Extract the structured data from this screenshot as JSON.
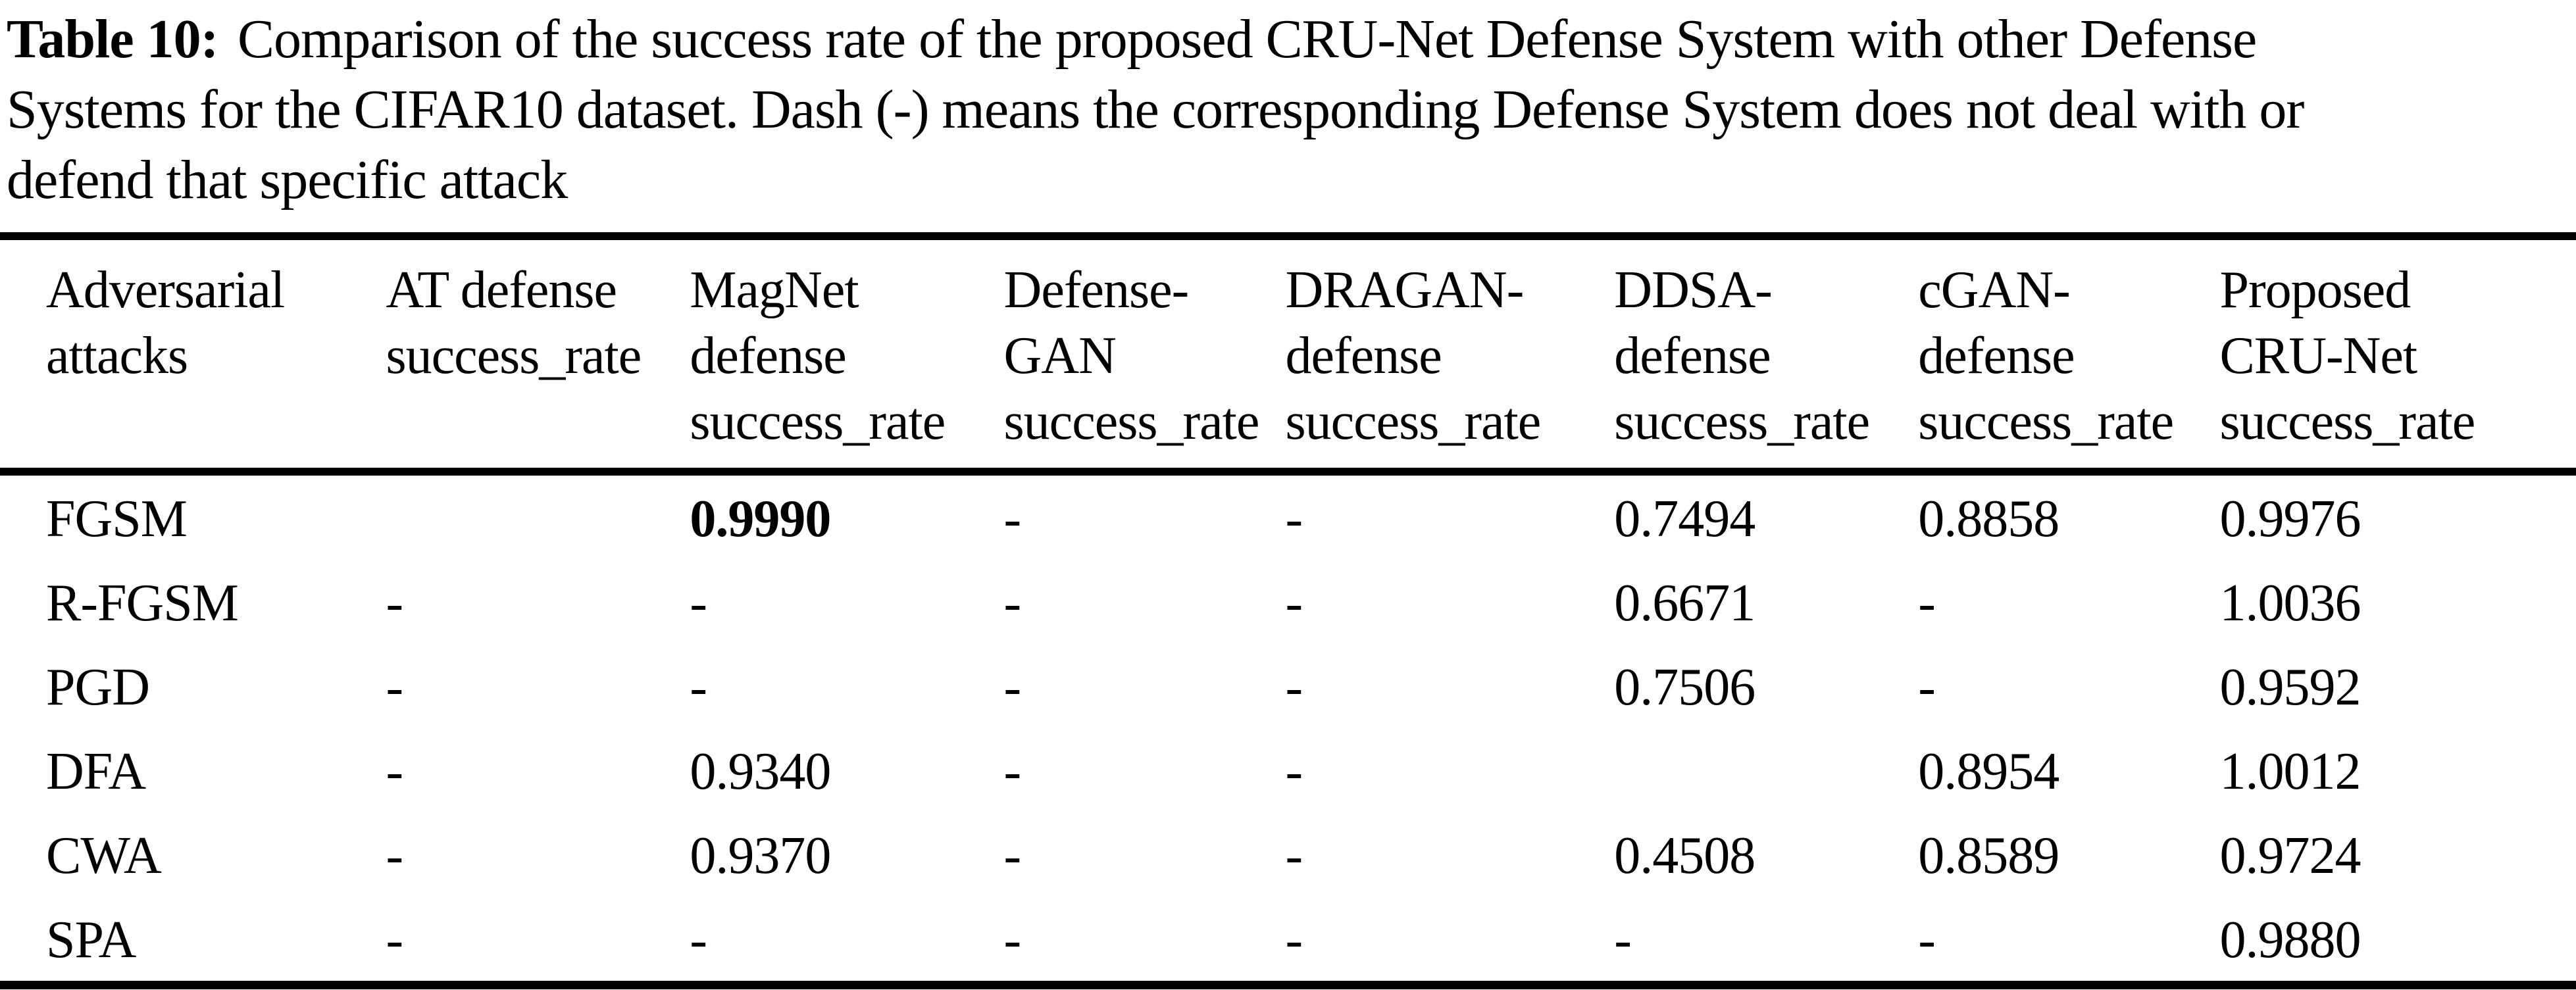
{
  "caption": {
    "label": "Table 10:",
    "line1": "Comparison of the success rate of the proposed CRU-Net Defense System with other Defense",
    "line2": "Systems for the CIFAR10 dataset. Dash (-) means the corresponding Defense System does not deal with or",
    "line3": "defend that specific attack"
  },
  "table": {
    "headers": [
      {
        "lines": [
          "Adversarial",
          "attacks"
        ]
      },
      {
        "lines": [
          "AT defense",
          "success_rate"
        ]
      },
      {
        "lines": [
          "MagNet",
          "defense",
          "success_rate"
        ]
      },
      {
        "lines": [
          "Defense-",
          "GAN",
          "success_rate"
        ]
      },
      {
        "lines": [
          "DRAGAN-",
          "defense",
          "success_rate"
        ]
      },
      {
        "lines": [
          "DDSA-",
          "defense",
          "success_rate"
        ]
      },
      {
        "lines": [
          "cGAN-",
          "defense",
          "success_rate"
        ]
      },
      {
        "lines": [
          "Proposed",
          "CRU-Net",
          "success_rate"
        ]
      }
    ],
    "rows": [
      {
        "cells": [
          "FGSM",
          "",
          "0.9990",
          "-",
          "-",
          "0.7494",
          "0.8858",
          "0.9976"
        ]
      },
      {
        "cells": [
          "R-FGSM",
          "-",
          "-",
          "-",
          "-",
          "0.6671",
          "-",
          "1.0036"
        ]
      },
      {
        "cells": [
          "PGD",
          "-",
          "-",
          "-",
          "-",
          "0.7506",
          "-",
          "0.9592"
        ]
      },
      {
        "cells": [
          "DFA",
          "-",
          "0.9340",
          "-",
          "-",
          "",
          "0.8954",
          "1.0012"
        ]
      },
      {
        "cells": [
          "CWA",
          "-",
          "0.9370",
          "-",
          "-",
          "0.4508",
          "0.8589",
          "0.9724"
        ]
      },
      {
        "cells": [
          "SPA",
          "-",
          "-",
          "-",
          "-",
          "-",
          "-",
          "0.9880"
        ]
      }
    ]
  },
  "colors": {
    "text": "#000000",
    "background": "#ffffff",
    "rule": "#000000"
  }
}
